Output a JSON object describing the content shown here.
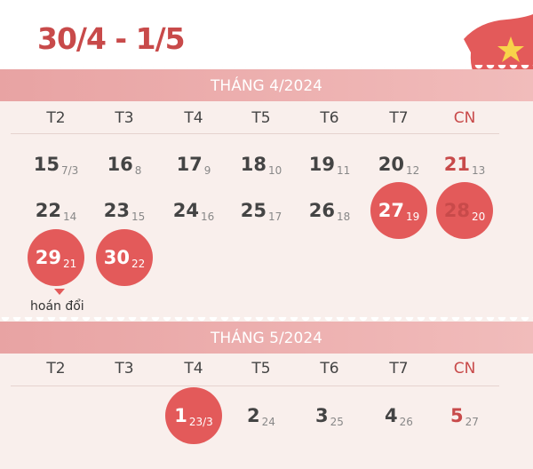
{
  "title": "30/4 - 1/5",
  "weekdays": [
    "T2",
    "T3",
    "T4",
    "T5",
    "T6",
    "T7",
    "CN"
  ],
  "colors": {
    "accent": "#e35a5a",
    "title": "#c84a4a",
    "band": "#eaa6a6"
  },
  "months": [
    {
      "label": "THÁNG 4/2024",
      "rows": [
        [
          {
            "day": "15",
            "lunar": "7/3"
          },
          {
            "day": "16",
            "lunar": "8"
          },
          {
            "day": "17",
            "lunar": "9"
          },
          {
            "day": "18",
            "lunar": "10"
          },
          {
            "day": "19",
            "lunar": "11"
          },
          {
            "day": "20",
            "lunar": "12"
          },
          {
            "day": "21",
            "lunar": "13"
          }
        ],
        [
          {
            "day": "22",
            "lunar": "14"
          },
          {
            "day": "23",
            "lunar": "15"
          },
          {
            "day": "24",
            "lunar": "16"
          },
          {
            "day": "25",
            "lunar": "17"
          },
          {
            "day": "26",
            "lunar": "18"
          },
          {
            "day": "27",
            "lunar": "19",
            "holiday": true
          },
          {
            "day": "28",
            "lunar": "20",
            "holiday": true
          }
        ],
        [
          {
            "day": "29",
            "lunar": "21",
            "holiday": true
          },
          {
            "day": "30",
            "lunar": "22",
            "holiday": true
          },
          null,
          null,
          null,
          null,
          null
        ]
      ]
    },
    {
      "label": "THÁNG 5/2024",
      "rows": [
        [
          null,
          null,
          {
            "day": "1",
            "lunar": "23/3",
            "holiday": true
          },
          {
            "day": "2",
            "lunar": "24"
          },
          {
            "day": "3",
            "lunar": "25"
          },
          {
            "day": "4",
            "lunar": "26"
          },
          {
            "day": "5",
            "lunar": "27"
          }
        ]
      ]
    }
  ],
  "swap_note": "hoán đổi"
}
